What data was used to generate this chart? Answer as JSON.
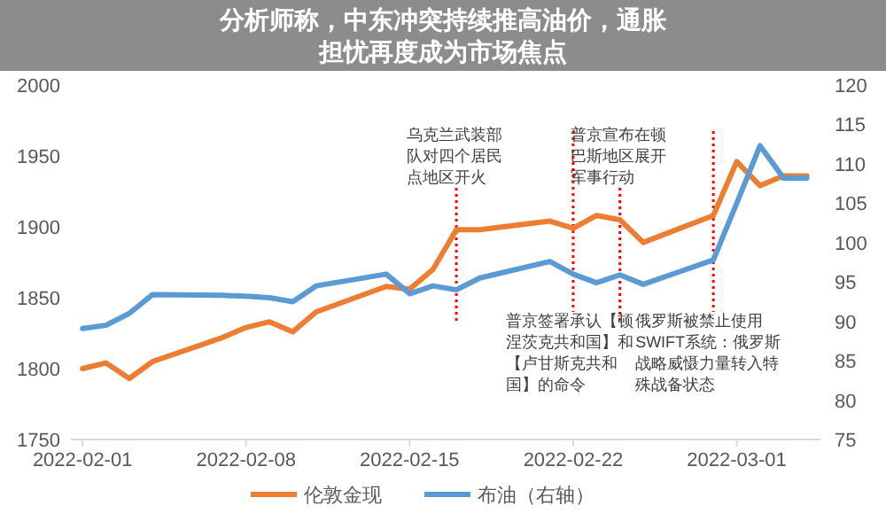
{
  "chart_data": {
    "type": "line",
    "title": "分析师称，中东冲突持续推高油价，通胀担忧再度成为市场焦点",
    "x": [
      "2022-02-01",
      "2022-02-02",
      "2022-02-03",
      "2022-02-04",
      "2022-02-07",
      "2022-02-08",
      "2022-02-09",
      "2022-02-10",
      "2022-02-11",
      "2022-02-14",
      "2022-02-15",
      "2022-02-16",
      "2022-02-17",
      "2022-02-18",
      "2022-02-21",
      "2022-02-22",
      "2022-02-23",
      "2022-02-24",
      "2022-02-25",
      "2022-02-28",
      "2022-03-01",
      "2022-03-02",
      "2022-03-03",
      "2022-03-04"
    ],
    "series": [
      {
        "name": "伦敦金现",
        "color": "#ed7d31",
        "values": [
          1800,
          1804,
          1793,
          1805,
          1822,
          1829,
          1833,
          1826,
          1840,
          1858,
          1856,
          1870,
          1898,
          1898,
          1904,
          1899,
          1908,
          1905,
          1889,
          1908,
          1946,
          1929,
          1936,
          1936
        ]
      },
      {
        "name": "布油（右轴）",
        "color": "#5b9bd5",
        "axis": "y2",
        "values": [
          89.1,
          89.5,
          91,
          93.4,
          93.3,
          93.2,
          93,
          92.5,
          94.5,
          96,
          93.5,
          94.5,
          94,
          95.5,
          97.6,
          96,
          94.9,
          95.9,
          94.7,
          97.8,
          105,
          112.3,
          108.2,
          108.2
        ]
      }
    ],
    "xlim": [
      "2022-01-31T12:00",
      "2022-03-04T14:00"
    ],
    "xticks": [
      "2022-02-01",
      "2022-02-08",
      "2022-02-15",
      "2022-02-22",
      "2022-03-01"
    ],
    "ylim": [
      1750,
      2000
    ],
    "yticks": [
      1750,
      1800,
      1850,
      1900,
      1950,
      2000
    ],
    "y2lim": [
      75,
      120
    ],
    "y2ticks": [
      75,
      80,
      85,
      90,
      95,
      100,
      105,
      110,
      115,
      120
    ],
    "ref_lines": [
      {
        "axis": "x",
        "value": "2022-02-17",
        "color": "#ff0000",
        "line_style": "dotted",
        "label": "乌克兰武装部队对四个居民点地区开火"
      },
      {
        "axis": "x",
        "value": "2022-02-22",
        "color": "#ff0000",
        "line_style": "dotted",
        "label": "普京签署承认【顿涅茨克共和国】和【卢甘斯克共和国】的命令"
      },
      {
        "axis": "x",
        "value": "2022-02-24",
        "color": "#ff0000",
        "line_style": "dotted",
        "label": "普京宣布在顿巴斯地区展开军事行动"
      },
      {
        "axis": "x",
        "value": "2022-02-28",
        "color": "#ff0000",
        "line_style": "dotted",
        "label": "俄罗斯被禁止使用SWIFT系统：俄罗斯战略威慑力量转入特殊战备状态"
      }
    ],
    "legend": "bottom",
    "line_style": "solid",
    "marker": "none"
  }
}
